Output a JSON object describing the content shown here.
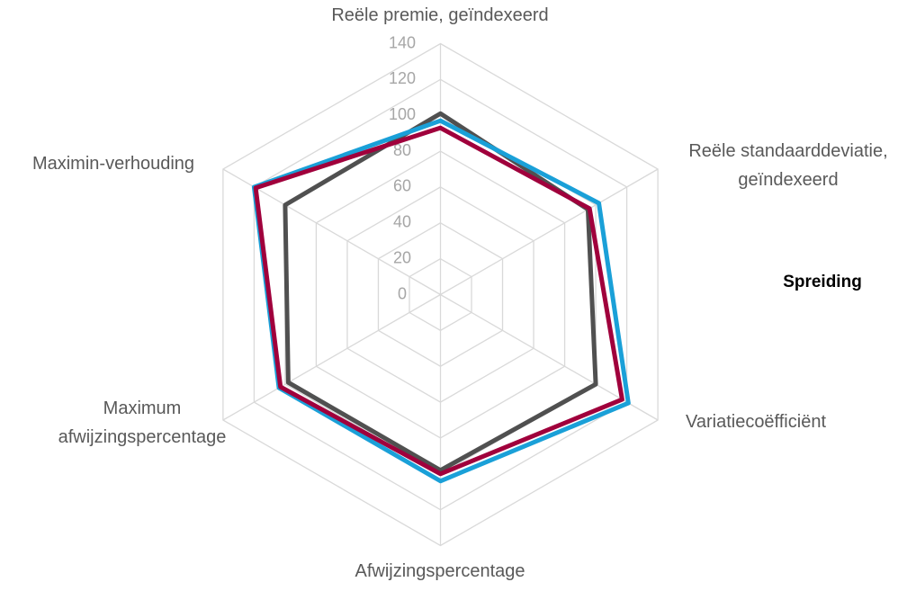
{
  "chart_data": {
    "type": "radar",
    "categories": [
      "Reële premie, geïndexeerd",
      "Reële standaarddeviatie, geïndexeerd",
      "Variatiecoëfficiënt",
      "Afwijzingspercentage",
      "Maximum afwijzingspercentage",
      "Maximin-verhouding"
    ],
    "series": [
      {
        "color": "#505050",
        "values": [
          101,
          95,
          100,
          98,
          98,
          100
        ]
      },
      {
        "color": "#1aa0d8",
        "values": [
          97,
          102,
          121,
          104,
          104,
          120
        ]
      },
      {
        "color": "#a0003c",
        "values": [
          93,
          96,
          117,
          100,
          103,
          119
        ]
      }
    ],
    "legend_title": "Spreiding",
    "ylim": [
      0,
      140
    ],
    "yticks": [
      0,
      20,
      40,
      60,
      80,
      100,
      120,
      140
    ],
    "grid": true
  }
}
